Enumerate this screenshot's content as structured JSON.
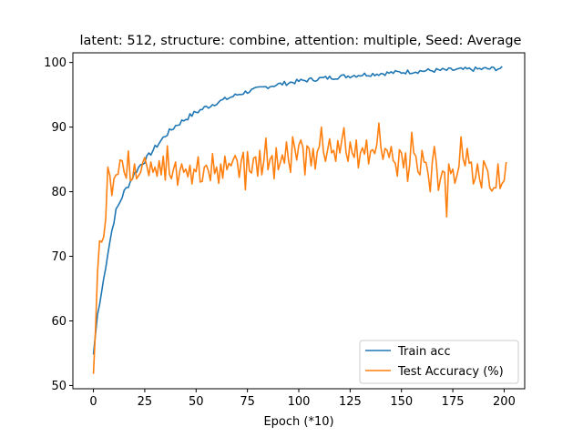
{
  "chart_data": {
    "type": "line",
    "title": "latent: 512, structure: combine, attention: multiple, Seed: Average",
    "xlabel": "Epoch (*10)",
    "ylabel": "",
    "xlim": [
      -10,
      210
    ],
    "ylim": [
      49.5,
      101.5
    ],
    "xticks": [
      0,
      25,
      50,
      75,
      100,
      125,
      150,
      175,
      200
    ],
    "yticks": [
      50,
      60,
      70,
      80,
      90,
      100
    ],
    "grid": false,
    "legend_position": "lower-right",
    "series": [
      {
        "name": "Train acc",
        "color": "#1f77b4",
        "anchors_x": [
          0,
          2,
          3,
          5,
          7,
          9,
          11,
          13,
          15,
          17,
          20,
          23,
          25,
          30,
          35,
          40,
          45,
          50,
          55,
          60,
          65,
          70,
          75,
          80,
          85,
          90,
          100,
          110,
          120,
          130,
          140,
          150,
          160,
          170,
          180,
          190,
          199
        ],
        "anchors_y": [
          54.8,
          61.0,
          62.5,
          66.5,
          70.5,
          74.0,
          77.0,
          78.5,
          80.0,
          81.0,
          82.8,
          84.2,
          84.8,
          86.8,
          88.7,
          90.2,
          91.3,
          92.3,
          93.1,
          93.8,
          94.4,
          95.0,
          95.5,
          95.9,
          96.3,
          96.6,
          97.1,
          97.5,
          97.8,
          98.1,
          98.3,
          98.5,
          98.7,
          98.8,
          98.9,
          99.0,
          99.1
        ],
        "noise": 0.35
      },
      {
        "name": "Test Accuracy (%)",
        "color": "#ff7f0e",
        "values": [
          51.8,
          58.5,
          67.5,
          72.4,
          72.2,
          73.0,
          75.8,
          83.8,
          82.5,
          79.4,
          82.0,
          82.6,
          82.7,
          84.9,
          84.8,
          83.0,
          82.1,
          86.3,
          81.7,
          81.9,
          84.3,
          82.0,
          82.5,
          83.0,
          84.5,
          85.3,
          84.0,
          82.5,
          84.6,
          83.0,
          83.8,
          82.4,
          84.8,
          82.6,
          85.5,
          81.8,
          87.1,
          82.7,
          82.0,
          83.5,
          84.6,
          81.0,
          83.1,
          84.3,
          83.0,
          83.5,
          82.3,
          84.1,
          81.2,
          83.5,
          83.1,
          85.4,
          81.5,
          81.6,
          83.8,
          84.1,
          83.2,
          81.7,
          85.9,
          82.8,
          83.8,
          81.3,
          84.3,
          82.1,
          85.5,
          83.4,
          84.4,
          84.0,
          84.9,
          85.6,
          84.8,
          82.2,
          84.8,
          86.1,
          80.3,
          86.2,
          83.2,
          82.9,
          85.2,
          85.4,
          82.4,
          86.4,
          82.6,
          84.8,
          88.3,
          83.4,
          85.0,
          85.6,
          82.0,
          86.8,
          83.4,
          84.5,
          85.7,
          84.4,
          87.7,
          84.9,
          83.0,
          88.5,
          86.8,
          84.9,
          87.2,
          88.0,
          86.9,
          82.6,
          87.1,
          86.7,
          84.0,
          86.7,
          83.5,
          86.2,
          87.0,
          90.0,
          86.2,
          84.7,
          86.4,
          88.2,
          86.0,
          86.4,
          84.7,
          87.9,
          86.0,
          88.1,
          89.9,
          86.1,
          84.7,
          87.7,
          86.0,
          85.3,
          88.0,
          83.7,
          86.0,
          86.8,
          85.8,
          88.0,
          84.3,
          86.3,
          86.5,
          85.9,
          87.3,
          90.6,
          86.8,
          85.0,
          86.7,
          86.4,
          85.3,
          87.0,
          84.8,
          84.4,
          82.4,
          86.5,
          86.0,
          83.7,
          86.0,
          81.6,
          84.2,
          89.2,
          86.0,
          85.5,
          83.1,
          82.6,
          86.4,
          84.6,
          84.5,
          82.7,
          80.0,
          84.6,
          87.0,
          84.4,
          80.2,
          82.0,
          83.2,
          83.0,
          76.1,
          84.3,
          82.8,
          83.5,
          81.3,
          82.5,
          83.9,
          88.5,
          85.1,
          84.0,
          86.7,
          84.4,
          84.6,
          81.2,
          82.1,
          84.3,
          82.0,
          80.6,
          84.8,
          84.0,
          83.2,
          80.6,
          80.1,
          80.6,
          80.6,
          84.3,
          80.5,
          81.3,
          81.7,
          84.6
        ]
      }
    ]
  }
}
